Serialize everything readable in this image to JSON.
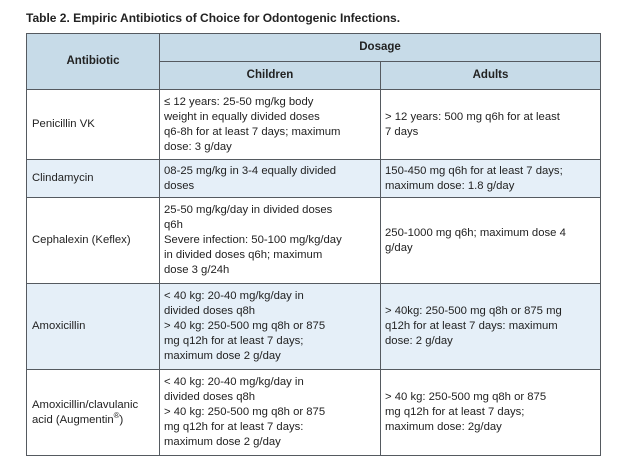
{
  "caption": "Table 2. Empiric Antibiotics of Choice for Odontogenic Infections.",
  "headers": {
    "antibiotic": "Antibiotic",
    "dosage": "Dosage",
    "children": "Children",
    "adults": "Adults"
  },
  "rows": [
    {
      "name": [
        "Penicillin VK"
      ],
      "children": [
        "≤ 12 years: 25-50 mg/kg body",
        "weight in equally divided doses",
        "q6-8h for at least 7 days; maximum",
        "dose: 3 g/day"
      ],
      "adults": [
        "> 12 years: 500 mg q6h for at least",
        "7 days"
      ]
    },
    {
      "name": [
        "Clindamycin"
      ],
      "children": [
        "08-25 mg/kg in 3-4 equally divided",
        "doses"
      ],
      "adults": [
        "150-450 mg q6h for at least 7 days;",
        "maximum dose: 1.8 g/day"
      ]
    },
    {
      "name": [
        "Cephalexin (Keflex)"
      ],
      "children": [
        "25-50 mg/kg/day in divided doses",
        "q6h",
        "Severe infection: 50-100 mg/kg/day",
        "in divided doses q6h; maximum",
        "dose 3 g/24h"
      ],
      "adults": [
        "250-1000 mg q6h; maximum dose 4",
        "g/day"
      ]
    },
    {
      "name": [
        "Amoxicillin"
      ],
      "children": [
        "< 40 kg: 20-40 mg/kg/day in",
        "divided doses q8h",
        "> 40 kg: 250-500 mg q8h or 875",
        "mg q12h for at least 7 days;",
        "maximum dose 2 g/day"
      ],
      "adults": [
        "> 40kg: 250-500 mg q8h or 875 mg",
        "q12h for at least 7 days: maximum",
        "dose: 2 g/day"
      ]
    },
    {
      "name": [
        "Amoxicillin/clavulanic",
        "acid (Augmentin"
      ],
      "name_sup": "®",
      "name_tail": ")",
      "children": [
        "< 40 kg: 20-40 mg/kg/day in",
        "divided doses q8h",
        "> 40 kg: 250-500 mg q8h or 875",
        "mg q12h for at least 7 days:",
        "maximum dose 2 g/day"
      ],
      "adults": [
        "> 40 kg: 250-500 mg q8h or 875",
        "mg q12h for at least 7 days;",
        "maximum dose: 2g/day"
      ]
    }
  ]
}
